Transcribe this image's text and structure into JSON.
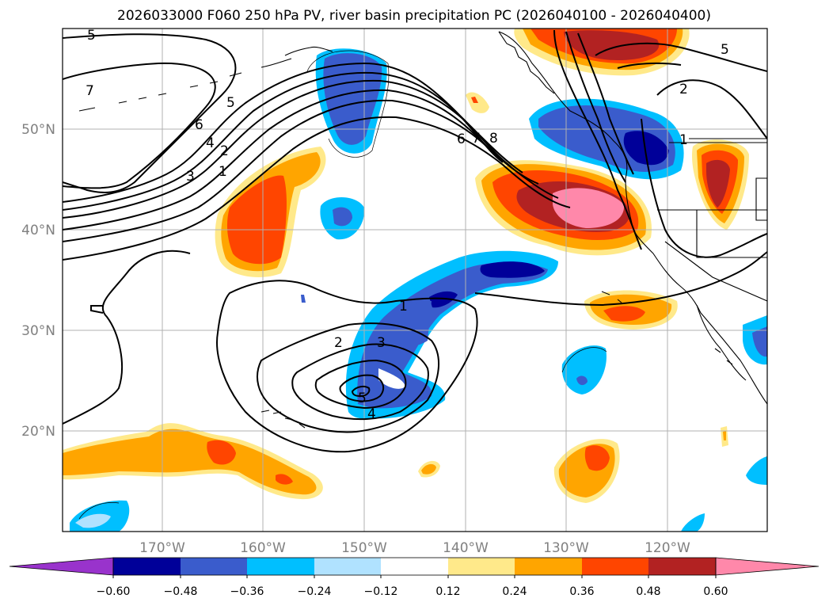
{
  "title": "2026033000 F060 250 hPa PV, river basin precipitation PC (2026040100 - 2026040400)",
  "map": {
    "lat_labels": [
      "50°N",
      "40°N",
      "30°N",
      "20°N"
    ],
    "lon_labels": [
      "170°W",
      "160°W",
      "150°W",
      "140°W",
      "130°W",
      "120°W"
    ]
  },
  "colorbar": {
    "colors": [
      "#9933cc",
      "#000099",
      "#3a5ccc",
      "#00bfff",
      "#b0e2ff",
      "#ffffff",
      "#ffe98a",
      "#ffa500",
      "#ff4500",
      "#b22222",
      "#ff88aa"
    ],
    "tick_labels": [
      "−0.60",
      "−0.48",
      "−0.36",
      "−0.24",
      "−0.12",
      "0.12",
      "0.24",
      "0.36",
      "0.48",
      "0.60"
    ]
  },
  "contour_labels": [
    "5",
    "7",
    "6",
    "5",
    "4",
    "3",
    "2",
    "1",
    "6",
    "7",
    "8",
    "5",
    "2",
    "1",
    "2",
    "3",
    "5",
    "4",
    "1"
  ]
}
